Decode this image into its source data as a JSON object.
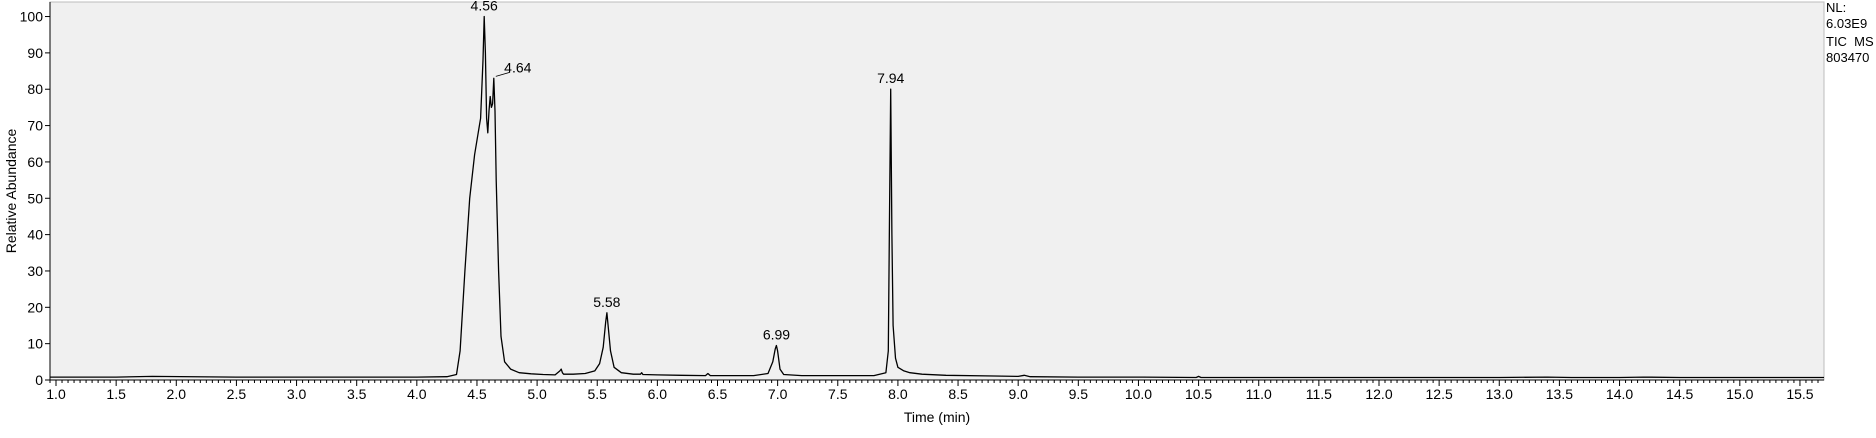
{
  "chart_data": {
    "type": "line",
    "title": "",
    "xlabel": "Time (min)",
    "ylabel": "Relative Abundance",
    "xlim": [
      0.95,
      15.7
    ],
    "ylim": [
      0,
      104
    ],
    "grid": false,
    "x_ticks": [
      "1.0",
      "1.5",
      "2.0",
      "2.5",
      "3.0",
      "3.5",
      "4.0",
      "4.5",
      "5.0",
      "5.5",
      "6.0",
      "6.5",
      "7.0",
      "7.5",
      "8.0",
      "8.5",
      "9.0",
      "9.5",
      "10.0",
      "10.5",
      "11.0",
      "11.5",
      "12.0",
      "12.5",
      "13.0",
      "13.5",
      "14.0",
      "14.5",
      "15.0",
      "15.5"
    ],
    "y_ticks": [
      "0",
      "10",
      "20",
      "30",
      "40",
      "50",
      "60",
      "70",
      "80",
      "90",
      "100"
    ],
    "info": {
      "nl_label": "NL:",
      "nl_value": "6.03E9",
      "trace_label": "TIC  MS",
      "file_id": "803470"
    },
    "peaks": [
      {
        "rt": "4.56",
        "x": 4.56,
        "y": 100
      },
      {
        "rt": "4.64",
        "x": 4.64,
        "y": 83
      },
      {
        "rt": "5.58",
        "x": 5.58,
        "y": 18.5
      },
      {
        "rt": "6.99",
        "x": 6.99,
        "y": 9.5
      },
      {
        "rt": "7.94",
        "x": 7.94,
        "y": 80
      }
    ],
    "series": [
      {
        "x": [
          0.95,
          1.5,
          1.8,
          2.5,
          3.0,
          3.5,
          4.0,
          4.25,
          4.33,
          4.36,
          4.4,
          4.44,
          4.48,
          4.51,
          4.53,
          4.55,
          4.56,
          4.57,
          4.58,
          4.59,
          4.6,
          4.61,
          4.62,
          4.63,
          4.64,
          4.65,
          4.66,
          4.68,
          4.7,
          4.73,
          4.78,
          4.85,
          4.95,
          5.05,
          5.15,
          5.19,
          5.2,
          5.21,
          5.22,
          5.3,
          5.4,
          5.48,
          5.52,
          5.55,
          5.57,
          5.58,
          5.59,
          5.61,
          5.64,
          5.7,
          5.8,
          5.86,
          5.87,
          5.88,
          6.0,
          6.2,
          6.4,
          6.42,
          6.44,
          6.6,
          6.8,
          6.92,
          6.96,
          6.98,
          6.99,
          7.0,
          7.02,
          7.05,
          7.2,
          7.5,
          7.8,
          7.9,
          7.92,
          7.93,
          7.94,
          7.95,
          7.96,
          7.98,
          8.0,
          8.05,
          8.1,
          8.2,
          8.4,
          8.8,
          9.0,
          9.05,
          9.1,
          9.5,
          10.0,
          10.48,
          10.5,
          10.52,
          11.0,
          12.0,
          13.0,
          13.4,
          13.6,
          14.0,
          14.2,
          14.5,
          15.0,
          15.5,
          15.7
        ],
        "y": [
          0.8,
          0.8,
          1.0,
          0.8,
          0.8,
          0.8,
          0.8,
          0.9,
          1.5,
          8.0,
          30.0,
          50.0,
          62.0,
          68.0,
          72.0,
          88.0,
          100.0,
          90.0,
          72.0,
          68.0,
          74.0,
          78.0,
          75.0,
          76.0,
          83.0,
          74.0,
          55.0,
          30.0,
          12.0,
          5.0,
          3.0,
          2.0,
          1.7,
          1.5,
          1.4,
          2.5,
          3.0,
          2.0,
          1.6,
          1.6,
          1.8,
          2.5,
          4.5,
          9.0,
          16.0,
          18.5,
          15.0,
          8.0,
          3.5,
          2.0,
          1.6,
          1.6,
          2.0,
          1.5,
          1.4,
          1.3,
          1.2,
          1.8,
          1.2,
          1.2,
          1.2,
          1.8,
          5.0,
          8.5,
          9.5,
          8.0,
          3.0,
          1.5,
          1.2,
          1.2,
          1.2,
          2.0,
          8.0,
          45.0,
          80.0,
          40.0,
          15.0,
          6.0,
          3.5,
          2.5,
          2.0,
          1.6,
          1.3,
          1.1,
          1.0,
          1.3,
          0.9,
          0.8,
          0.8,
          0.7,
          1.0,
          0.7,
          0.7,
          0.7,
          0.7,
          0.8,
          0.7,
          0.7,
          0.8,
          0.7,
          0.7,
          0.7,
          0.7
        ]
      }
    ]
  }
}
